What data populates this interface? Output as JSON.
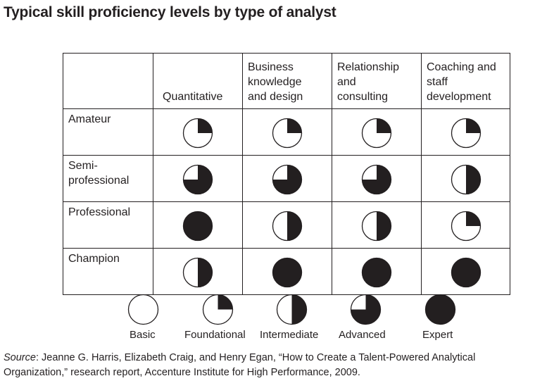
{
  "title": "Typical skill proficiency levels by type of analyst",
  "columns": [
    "Quantitative",
    "Business knowledge and design",
    "Relationship and consulting",
    "Coaching and staff development"
  ],
  "column_lines": [
    [
      "Quantitative"
    ],
    [
      "Business",
      "knowledge",
      "and design"
    ],
    [
      "Relationship",
      "and",
      "consulting"
    ],
    [
      "Coaching and",
      "staff",
      "development"
    ]
  ],
  "rows": [
    {
      "label_lines": [
        "Amateur"
      ],
      "levels": [
        "Foundational",
        "Foundational",
        "Foundational",
        "Foundational"
      ]
    },
    {
      "label_lines": [
        "Semi-",
        "professional"
      ],
      "levels": [
        "Advanced",
        "Advanced",
        "Advanced",
        "Intermediate"
      ]
    },
    {
      "label_lines": [
        "Professional"
      ],
      "levels": [
        "Expert",
        "Intermediate",
        "Intermediate",
        "Foundational"
      ]
    },
    {
      "label_lines": [
        "Champion"
      ],
      "levels": [
        "Intermediate",
        "Expert",
        "Expert",
        "Expert"
      ]
    }
  ],
  "legend": [
    {
      "label": "Basic",
      "fill_quarters": 0
    },
    {
      "label": "Foundational",
      "fill_quarters": 1
    },
    {
      "label": "Intermediate",
      "fill_quarters": 2
    },
    {
      "label": "Advanced",
      "fill_quarters": 3
    },
    {
      "label": "Expert",
      "fill_quarters": 4
    }
  ],
  "source": {
    "label": "Source",
    "text": ": Jeanne G. Harris, Elizabeth Craig, and Henry Egan, “How to Create a Talent-Powered Analytical Organization,” research report, Accenture Institute for High Performance, 2009."
  },
  "colors": {
    "ink": "#231f20",
    "fill": "#231f20",
    "background": "#ffffff"
  }
}
